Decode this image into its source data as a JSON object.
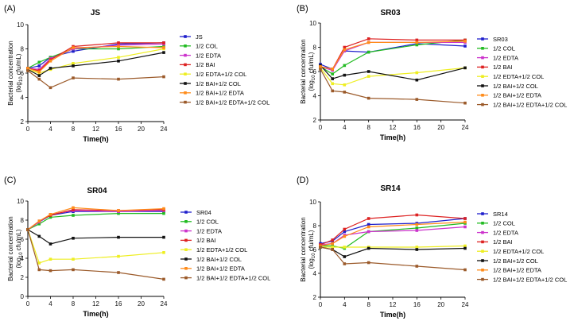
{
  "chart_data": [
    {
      "type": "line",
      "panel": "(A)",
      "title": "JS",
      "xlabel": "Time(h)",
      "ylabel": "Bacterial concentration",
      "ylabel_unit_prefix": "(log",
      "ylabel_unit_sub": "10",
      "ylabel_unit_suffix": " cfu/mL)",
      "xlim": [
        0,
        24
      ],
      "ylim": [
        2,
        10
      ],
      "xticks": [
        0,
        4,
        8,
        12,
        16,
        20,
        24
      ],
      "yticks": [
        2,
        4,
        6,
        8,
        10
      ],
      "x": [
        0,
        2,
        4,
        8,
        16,
        24
      ],
      "series": [
        {
          "name": "JS",
          "color": "#1f1fcc",
          "values": [
            6.4,
            6.6,
            7.3,
            7.8,
            8.4,
            8.5
          ]
        },
        {
          "name": "1/2 COL",
          "color": "#22bb22",
          "values": [
            6.4,
            6.9,
            7.3,
            8.0,
            8.0,
            8.2
          ]
        },
        {
          "name": "1/2 EDTA",
          "color": "#cc33cc",
          "values": [
            6.4,
            6.3,
            7.2,
            8.0,
            8.3,
            8.4
          ]
        },
        {
          "name": "1/2 BAI",
          "color": "#dd2222",
          "values": [
            6.4,
            6.2,
            7.1,
            8.2,
            8.5,
            8.5
          ]
        },
        {
          "name": "1/2 EDTA+1/2 COL",
          "color": "#eeee22",
          "values": [
            6.3,
            6.0,
            6.3,
            6.8,
            7.3,
            8.0
          ]
        },
        {
          "name": "1/2 BAI+1/2 COL",
          "color": "#111111",
          "values": [
            6.3,
            5.8,
            6.4,
            6.6,
            7.0,
            7.7
          ]
        },
        {
          "name": "1/2 BAI+1/2 EDTA",
          "color": "#ff8c1a",
          "values": [
            6.4,
            6.1,
            7.0,
            8.1,
            8.2,
            8.1
          ]
        },
        {
          "name": "1/2 BAI+1/2 EDTA+1/2 COL",
          "color": "#9b5a2a",
          "values": [
            6.2,
            5.5,
            4.8,
            5.6,
            5.5,
            5.7
          ]
        }
      ]
    },
    {
      "type": "line",
      "panel": "(B)",
      "title": "SR03",
      "xlabel": "Time(h)",
      "ylabel": "Bacterial concentration",
      "ylabel_unit_prefix": "(log",
      "ylabel_unit_sub": "10",
      "ylabel_unit_suffix": " cfu/mL)",
      "xlim": [
        0,
        24
      ],
      "ylim": [
        2,
        10
      ],
      "xticks": [
        0,
        4,
        8,
        12,
        16,
        20,
        24
      ],
      "yticks": [
        2,
        4,
        6,
        8,
        10
      ],
      "x": [
        0,
        2,
        4,
        8,
        16,
        24
      ],
      "series": [
        {
          "name": "SR03",
          "color": "#1f1fcc",
          "values": [
            6.6,
            6.2,
            7.7,
            7.6,
            8.3,
            8.1
          ]
        },
        {
          "name": "1/2 COL",
          "color": "#22bb22",
          "values": [
            6.4,
            5.8,
            6.5,
            7.6,
            8.2,
            8.6
          ]
        },
        {
          "name": "1/2 EDTA",
          "color": "#cc33cc",
          "values": [
            6.4,
            6.1,
            7.7,
            8.4,
            8.4,
            8.4
          ]
        },
        {
          "name": "1/2 BAI",
          "color": "#dd2222",
          "values": [
            6.4,
            6.2,
            8.0,
            8.7,
            8.6,
            8.6
          ]
        },
        {
          "name": "1/2 EDTA+1/2 COL",
          "color": "#eeee22",
          "values": [
            6.3,
            5.0,
            4.9,
            5.6,
            5.9,
            6.3
          ]
        },
        {
          "name": "1/2 BAI+1/2 COL",
          "color": "#111111",
          "values": [
            6.5,
            5.4,
            5.7,
            6.0,
            5.3,
            6.3
          ]
        },
        {
          "name": "1/2 BAI+1/2 EDTA",
          "color": "#ff8c1a",
          "values": [
            6.4,
            6.2,
            7.8,
            8.4,
            8.4,
            8.5
          ]
        },
        {
          "name": "1/2 BAI+1/2 EDTA+1/2 COL",
          "color": "#9b5a2a",
          "values": [
            6.2,
            4.4,
            4.3,
            3.8,
            3.7,
            3.4
          ]
        }
      ]
    },
    {
      "type": "line",
      "panel": "(C)",
      "title": "SR04",
      "xlabel": "Time(h)",
      "ylabel": "Bacterial concentration",
      "ylabel_unit_prefix": "(log",
      "ylabel_unit_sub": "10",
      "ylabel_unit_suffix": " cfu/mL)",
      "xlim": [
        0,
        24
      ],
      "ylim": [
        0,
        10
      ],
      "xticks": [
        0,
        4,
        8,
        12,
        16,
        20,
        24
      ],
      "yticks": [
        0,
        2,
        4,
        6,
        8,
        10
      ],
      "x": [
        0,
        2,
        4,
        8,
        16,
        24
      ],
      "series": [
        {
          "name": "SR04",
          "color": "#1f1fcc",
          "values": [
            7.0,
            7.8,
            8.5,
            8.9,
            8.9,
            8.9
          ]
        },
        {
          "name": "1/2 COL",
          "color": "#22bb22",
          "values": [
            7.0,
            7.6,
            8.3,
            8.5,
            8.7,
            8.7
          ]
        },
        {
          "name": "1/2 EDTA",
          "color": "#cc33cc",
          "values": [
            7.0,
            7.8,
            8.6,
            9.0,
            8.9,
            9.0
          ]
        },
        {
          "name": "1/2 BAI",
          "color": "#dd2222",
          "values": [
            7.0,
            7.9,
            8.5,
            9.1,
            9.0,
            9.1
          ]
        },
        {
          "name": "1/2 EDTA+1/2 COL",
          "color": "#eeee22",
          "values": [
            7.0,
            3.5,
            3.9,
            3.9,
            4.2,
            4.6
          ]
        },
        {
          "name": "1/2 BAI+1/2 COL",
          "color": "#111111",
          "values": [
            7.0,
            6.3,
            5.5,
            6.1,
            6.2,
            6.2
          ]
        },
        {
          "name": "1/2 BAI+1/2 EDTA",
          "color": "#ff8c1a",
          "values": [
            7.0,
            7.9,
            8.6,
            9.3,
            9.0,
            9.2
          ]
        },
        {
          "name": "1/2 BAI+1/2 EDTA+1/2 COL",
          "color": "#9b5a2a",
          "values": [
            7.0,
            2.8,
            2.7,
            2.8,
            2.5,
            1.8
          ]
        }
      ]
    },
    {
      "type": "line",
      "panel": "(D)",
      "title": "SR14",
      "xlabel": "Time(h)",
      "ylabel": "Bacterial concentration",
      "ylabel_unit_prefix": "(log",
      "ylabel_unit_sub": "10",
      "ylabel_unit_suffix": " cfu/mL)",
      "xlim": [
        0,
        24
      ],
      "ylim": [
        2,
        10
      ],
      "xticks": [
        0,
        4,
        8,
        12,
        16,
        20,
        24
      ],
      "yticks": [
        2,
        4,
        6,
        8,
        10
      ],
      "x": [
        0,
        2,
        4,
        8,
        16,
        24
      ],
      "series": [
        {
          "name": "SR14",
          "color": "#1f1fcc",
          "values": [
            6.5,
            6.7,
            7.5,
            8.1,
            8.2,
            8.6
          ]
        },
        {
          "name": "1/2 COL",
          "color": "#22bb22",
          "values": [
            6.3,
            6.3,
            6.1,
            7.5,
            7.8,
            8.2
          ]
        },
        {
          "name": "1/2 EDTA",
          "color": "#cc33cc",
          "values": [
            6.4,
            6.5,
            7.2,
            7.5,
            7.6,
            7.9
          ]
        },
        {
          "name": "1/2 BAI",
          "color": "#dd2222",
          "values": [
            6.4,
            6.8,
            7.7,
            8.6,
            8.9,
            8.6
          ]
        },
        {
          "name": "1/2 EDTA+1/2 COL",
          "color": "#eeee22",
          "values": [
            6.2,
            6.2,
            6.2,
            6.2,
            6.2,
            6.3
          ]
        },
        {
          "name": "1/2 BAI+1/2 COL",
          "color": "#111111",
          "values": [
            6.2,
            6.0,
            5.4,
            6.1,
            6.0,
            6.1
          ]
        },
        {
          "name": "1/2 BAI+1/2 EDTA",
          "color": "#ff8c1a",
          "values": [
            6.3,
            6.5,
            7.1,
            7.9,
            8.1,
            8.3
          ]
        },
        {
          "name": "1/2 BAI+1/2 EDTA+1/2 COL",
          "color": "#9b5a2a",
          "values": [
            6.2,
            6.0,
            4.8,
            4.9,
            4.6,
            4.3
          ]
        }
      ]
    }
  ]
}
